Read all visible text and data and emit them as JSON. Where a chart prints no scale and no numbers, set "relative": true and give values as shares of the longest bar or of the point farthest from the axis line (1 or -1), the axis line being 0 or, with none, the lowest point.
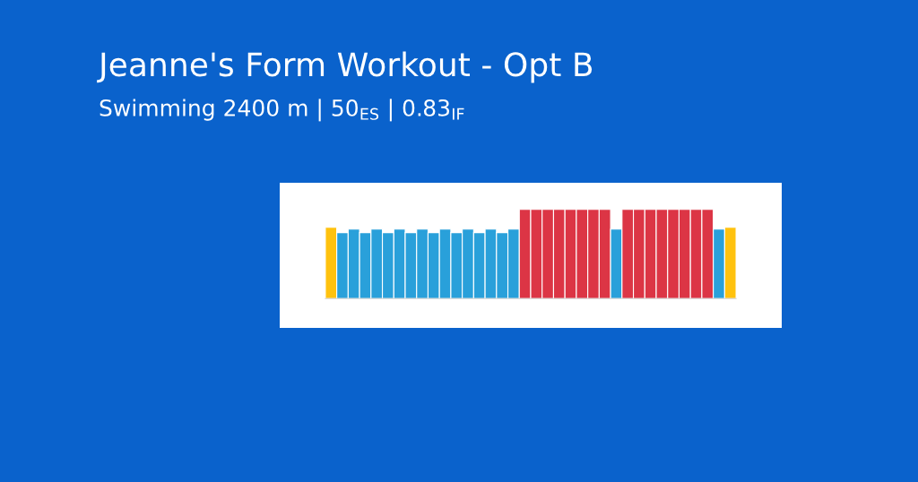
{
  "chart_data": {
    "type": "bar",
    "title": "Jeanne's Form Workout - Opt B",
    "subtitle": "Swimming 2400 m | 50$_{ES}$ | 0.83$_{IF}$",
    "relative": true,
    "categories": [
      null,
      null,
      null,
      null,
      null,
      null,
      null,
      null,
      null,
      null,
      null,
      null,
      null,
      null,
      null,
      null,
      null,
      null,
      null,
      null,
      null,
      null,
      null,
      null,
      null,
      null,
      null,
      null,
      null,
      null,
      null,
      null,
      null,
      null,
      null,
      null
    ],
    "values": [
      0.8,
      0.74,
      0.78,
      0.74,
      0.78,
      0.74,
      0.78,
      0.74,
      0.78,
      0.74,
      0.78,
      0.74,
      0.78,
      0.74,
      0.78,
      0.74,
      0.78,
      1,
      1,
      1,
      1,
      1,
      1,
      1,
      1,
      0.78,
      1,
      1,
      1,
      1,
      1,
      1,
      1,
      1,
      0.78,
      0.8
    ],
    "colors": [
      "#ffc20e",
      "#29a0da",
      "#29a0da",
      "#29a0da",
      "#29a0da",
      "#29a0da",
      "#29a0da",
      "#29a0da",
      "#29a0da",
      "#29a0da",
      "#29a0da",
      "#29a0da",
      "#29a0da",
      "#29a0da",
      "#29a0da",
      "#29a0da",
      "#29a0da",
      "#dc3545",
      "#dc3545",
      "#dc3545",
      "#dc3545",
      "#dc3545",
      "#dc3545",
      "#dc3545",
      "#dc3545",
      "#29a0da",
      "#dc3545",
      "#dc3545",
      "#dc3545",
      "#dc3545",
      "#dc3545",
      "#dc3545",
      "#dc3545",
      "#dc3545",
      "#29a0da",
      "#ffc20e"
    ]
  }
}
